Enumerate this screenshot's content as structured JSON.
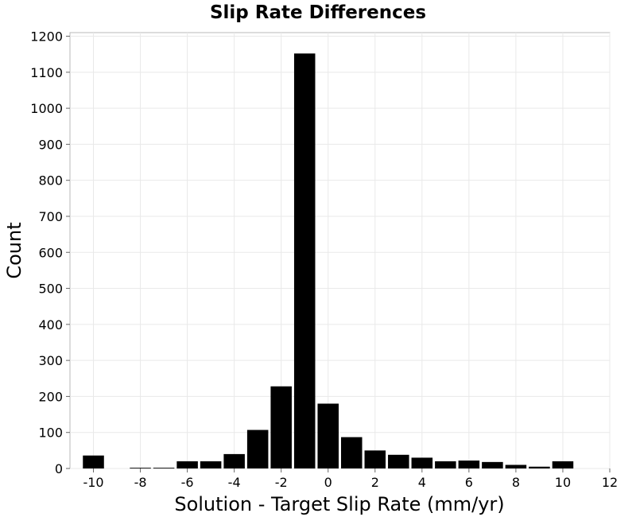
{
  "chart_data": {
    "type": "bar",
    "title": "Slip Rate Differences",
    "xlabel": "Solution - Target Slip Rate (mm/yr)",
    "ylabel": "Count",
    "xlim": [
      -11,
      12
    ],
    "ylim": [
      0,
      1210
    ],
    "grid": true,
    "bar_color": "#000000",
    "grid_color": "#e9e9e9",
    "x_ticks": [
      -10,
      -8,
      -6,
      -4,
      -2,
      0,
      2,
      4,
      6,
      8,
      10,
      12
    ],
    "y_ticks": [
      0,
      100,
      200,
      300,
      400,
      500,
      600,
      700,
      800,
      900,
      1000,
      1100,
      1200
    ],
    "bin_width": 1,
    "x": [
      -10,
      -9,
      -8,
      -7,
      -6,
      -5,
      -4,
      -3,
      -2,
      -1,
      0,
      1,
      2,
      3,
      4,
      5,
      6,
      7,
      8,
      9,
      10
    ],
    "values": [
      36,
      0,
      2,
      2,
      20,
      20,
      40,
      107,
      228,
      1152,
      180,
      87,
      50,
      38,
      30,
      20,
      22,
      18,
      10,
      5,
      20
    ]
  }
}
